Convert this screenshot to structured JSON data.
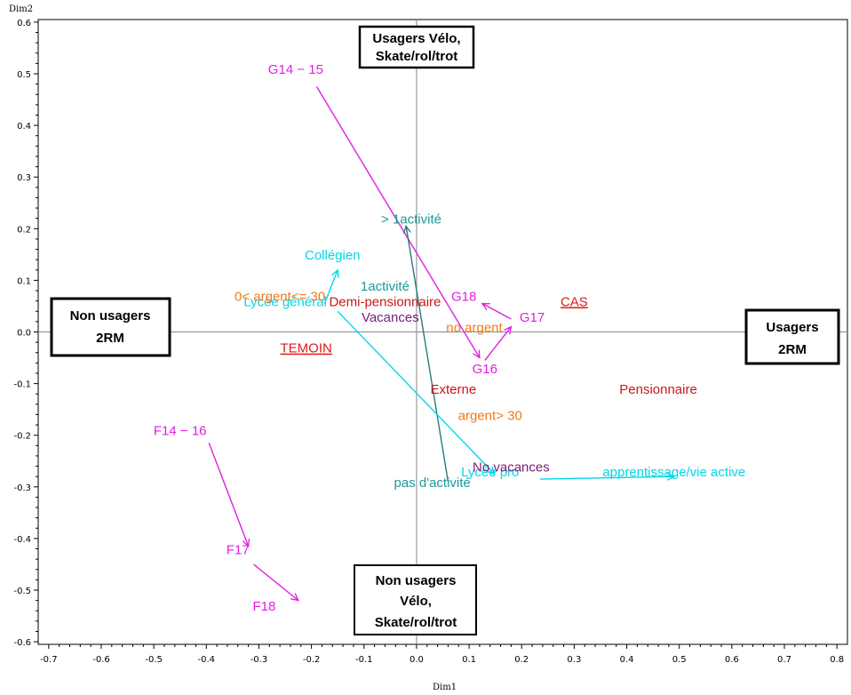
{
  "chart_data": {
    "type": "scatter",
    "xlabel": "Dim1",
    "ylabel": "Dim2",
    "xlim": [
      -0.72,
      0.82
    ],
    "ylim": [
      -0.605,
      0.605
    ],
    "xticks": [
      {
        "v": -0.7,
        "label": "-0.7"
      },
      {
        "v": -0.6,
        "label": "-0.6"
      },
      {
        "v": -0.5,
        "label": "-0.5"
      },
      {
        "v": -0.4,
        "label": "-0.4"
      },
      {
        "v": -0.3,
        "label": "-0.3"
      },
      {
        "v": -0.2,
        "label": "-0.2"
      },
      {
        "v": -0.1,
        "label": "-0.1"
      },
      {
        "v": 0.0,
        "label": "0.0"
      },
      {
        "v": 0.1,
        "label": "0.1"
      },
      {
        "v": 0.2,
        "label": "0.2"
      },
      {
        "v": 0.3,
        "label": "0.3"
      },
      {
        "v": 0.4,
        "label": "0.4"
      },
      {
        "v": 0.5,
        "label": "0.5"
      },
      {
        "v": 0.6,
        "label": "0.6"
      },
      {
        "v": 0.7,
        "label": "0.7"
      },
      {
        "v": 0.8,
        "label": "0.8"
      }
    ],
    "yticks": [
      {
        "v": 0.6,
        "label": "0.6"
      },
      {
        "v": 0.5,
        "label": "0.5"
      },
      {
        "v": 0.4,
        "label": "0.4"
      },
      {
        "v": 0.3,
        "label": "0.3"
      },
      {
        "v": 0.2,
        "label": "0.2"
      },
      {
        "v": 0.1,
        "label": "0.1"
      },
      {
        "v": 0.0,
        "label": "0.0"
      },
      {
        "v": -0.1,
        "label": "-0.1"
      },
      {
        "v": -0.2,
        "label": "-0.2"
      },
      {
        "v": -0.3,
        "label": "-0.3"
      },
      {
        "v": -0.4,
        "label": "-0.4"
      },
      {
        "v": -0.5,
        "label": "-0.5"
      },
      {
        "v": -0.6,
        "label": "-0.6"
      }
    ],
    "points": [
      {
        "label": "G14 − 15",
        "x": -0.23,
        "y": 0.5,
        "color": "#e020e0"
      },
      {
        "label": "G16",
        "x": 0.13,
        "y": -0.08,
        "color": "#e020e0"
      },
      {
        "label": "G17",
        "x": 0.22,
        "y": 0.02,
        "color": "#e020e0"
      },
      {
        "label": "G18",
        "x": 0.09,
        "y": 0.06,
        "color": "#e020e0"
      },
      {
        "label": "F14 − 16",
        "x": -0.45,
        "y": -0.2,
        "color": "#e020e0"
      },
      {
        "label": "F17",
        "x": -0.34,
        "y": -0.43,
        "color": "#e020e0"
      },
      {
        "label": "F18",
        "x": -0.29,
        "y": -0.54,
        "color": "#e020e0"
      },
      {
        "label": "> 1activité",
        "x": -0.01,
        "y": 0.21,
        "color": "#1a9a9a"
      },
      {
        "label": "1activité",
        "x": -0.06,
        "y": 0.08,
        "color": "#1a9a9a"
      },
      {
        "label": "pas d'activité",
        "x": 0.03,
        "y": -0.3,
        "color": "#1a9a9a"
      },
      {
        "label": "Collégien",
        "x": -0.16,
        "y": 0.14,
        "color": "#00d8e8"
      },
      {
        "label": "Lycée général",
        "x": -0.25,
        "y": 0.05,
        "color": "#00d8e8"
      },
      {
        "label": "Lycée pro",
        "x": 0.14,
        "y": -0.28,
        "color": "#00d8e8"
      },
      {
        "label": "apprentissage/vie active",
        "x": 0.49,
        "y": -0.28,
        "color": "#00d8e8"
      },
      {
        "label": "0< argent<= 30",
        "x": -0.26,
        "y": 0.06,
        "color": "#f07a18"
      },
      {
        "label": "no argent",
        "x": 0.11,
        "y": 0.0,
        "color": "#f07a18"
      },
      {
        "label": "argent> 30",
        "x": 0.14,
        "y": -0.17,
        "color": "#f07a18"
      },
      {
        "label": "Demi-pensionnaire",
        "x": -0.06,
        "y": 0.05,
        "color": "#c81818"
      },
      {
        "label": "Externe",
        "x": 0.07,
        "y": -0.12,
        "color": "#c81818"
      },
      {
        "label": "Pensionnaire",
        "x": 0.46,
        "y": -0.12,
        "color": "#c81818"
      },
      {
        "label": "Vacances",
        "x": -0.05,
        "y": 0.02,
        "color": "#7a1a7a"
      },
      {
        "label": "No vacances",
        "x": 0.18,
        "y": -0.27,
        "color": "#7a1a7a"
      },
      {
        "label": "CAS",
        "x": 0.3,
        "y": 0.05,
        "color": "#e01818",
        "underline": true
      },
      {
        "label": "TEMOIN",
        "x": -0.21,
        "y": -0.04,
        "color": "#e01818",
        "underline": true
      }
    ],
    "arrows": [
      {
        "x1": -0.19,
        "y1": 0.475,
        "x2": 0.12,
        "y2": -0.05,
        "color": "#e020e0"
      },
      {
        "x1": 0.13,
        "y1": -0.055,
        "x2": 0.18,
        "y2": 0.01,
        "color": "#e020e0"
      },
      {
        "x1": 0.18,
        "y1": 0.025,
        "x2": 0.125,
        "y2": 0.055,
        "color": "#e020e0"
      },
      {
        "x1": -0.395,
        "y1": -0.215,
        "x2": -0.32,
        "y2": -0.415,
        "color": "#e020e0"
      },
      {
        "x1": -0.31,
        "y1": -0.45,
        "x2": -0.225,
        "y2": -0.52,
        "color": "#e020e0"
      },
      {
        "x1": 0.06,
        "y1": -0.29,
        "x2": -0.02,
        "y2": 0.205,
        "color": "#2a7a7a"
      },
      {
        "x1": -0.175,
        "y1": 0.055,
        "x2": -0.15,
        "y2": 0.12,
        "color": "#00d8e8"
      },
      {
        "x1": -0.15,
        "y1": 0.04,
        "x2": 0.148,
        "y2": -0.275,
        "color": "#00d8e8"
      },
      {
        "x1": 0.235,
        "y1": -0.285,
        "x2": 0.49,
        "y2": -0.28,
        "color": "#00d8e8"
      }
    ],
    "annotations": [
      {
        "lines": [
          "Usagers Vélo,",
          "Skate/rol/trot"
        ]
      },
      {
        "lines": [
          "Non usagers",
          "2RM"
        ]
      },
      {
        "lines": [
          "Usagers",
          "2RM"
        ]
      },
      {
        "lines": [
          "Non usagers",
          "Vélo,",
          "Skate/rol/trot"
        ]
      }
    ]
  }
}
